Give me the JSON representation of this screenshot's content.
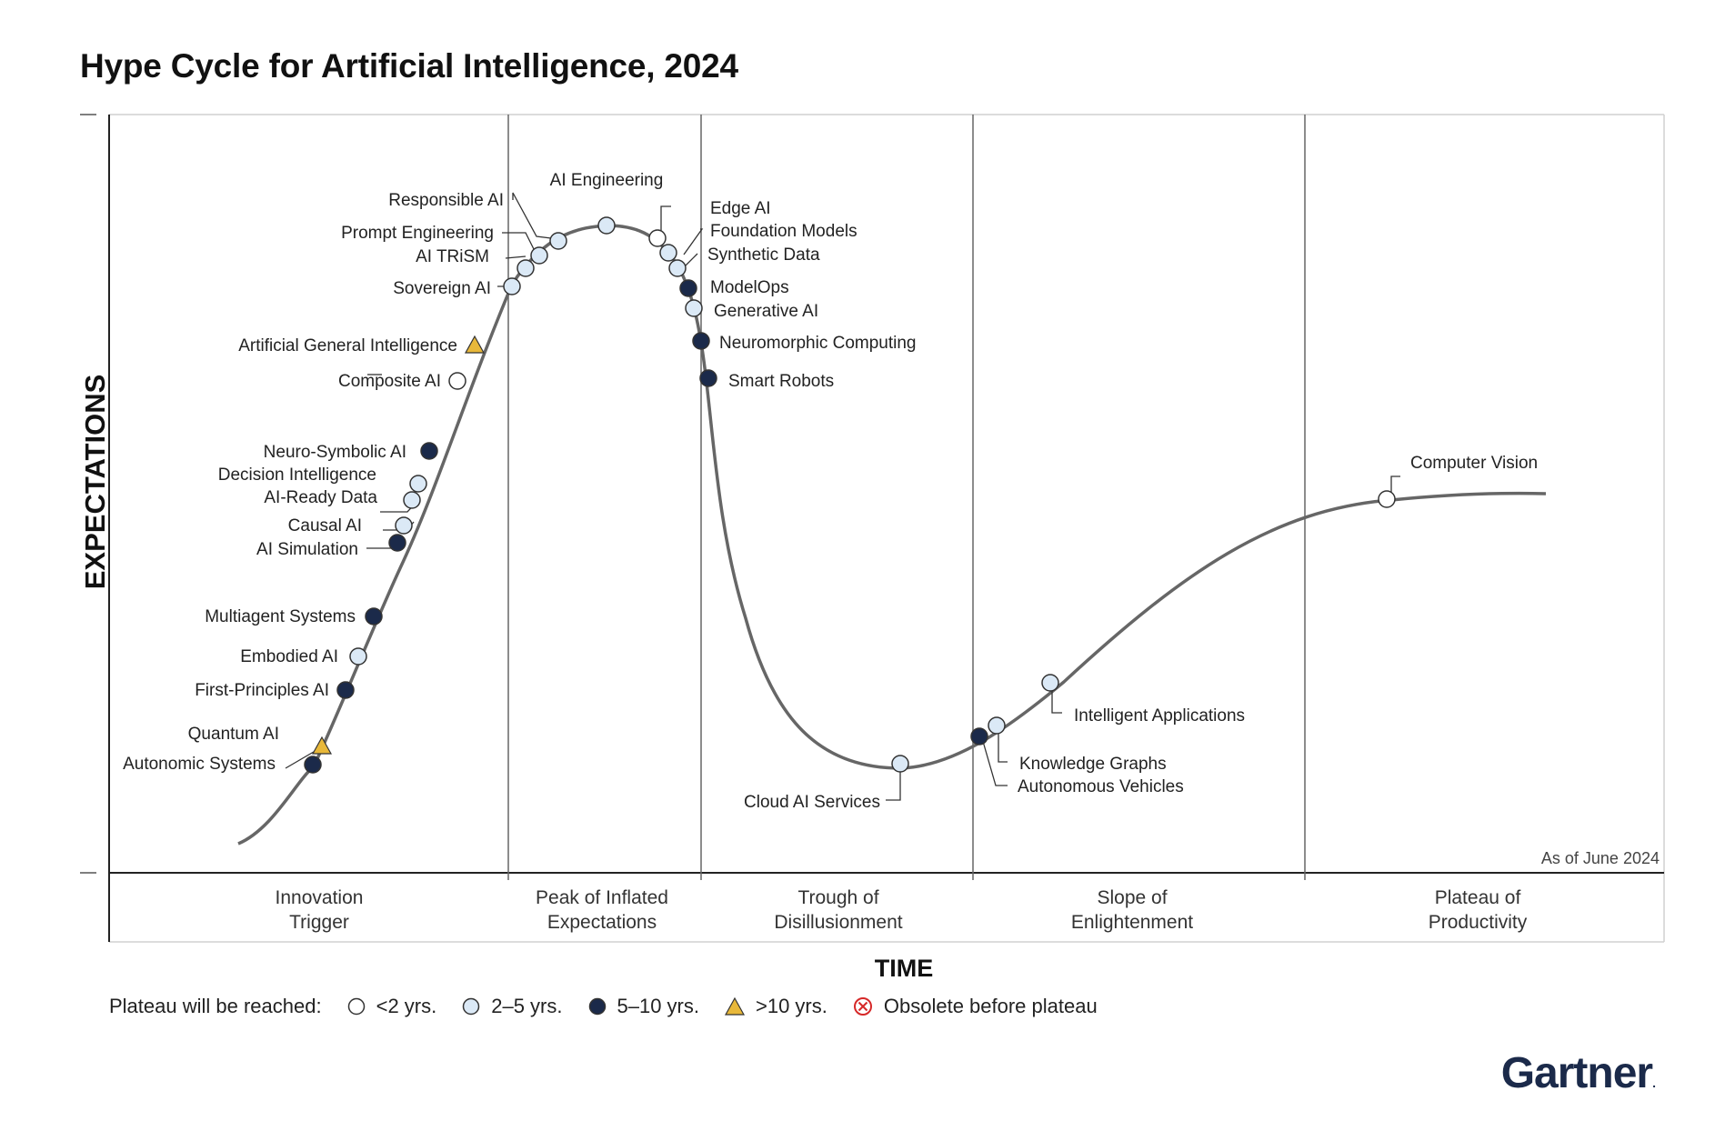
{
  "title": "Hype Cycle for Artificial Intelligence, 2024",
  "axis": {
    "y_label": "EXPECTATIONS",
    "x_label": "TIME"
  },
  "as_of": "As of June 2024",
  "phases": [
    {
      "line1": "Innovation",
      "line2": "Trigger"
    },
    {
      "line1": "Peak of Inflated",
      "line2": "Expectations"
    },
    {
      "line1": "Trough of",
      "line2": "Disillusionment"
    },
    {
      "line1": "Slope of",
      "line2": "Enlightenment"
    },
    {
      "line1": "Plateau of",
      "line2": "Productivity"
    }
  ],
  "colors": {
    "lt2": "#ffffff",
    "y2to5": "#dbe9f6",
    "y5to10": "#1b2a4a",
    "gt10": "#e8b83a",
    "obsolete": "#d62828",
    "curve": "#666666"
  },
  "technologies": [
    {
      "name": "AI Engineering",
      "class": "2-5"
    },
    {
      "name": "Responsible AI",
      "class": "2-5"
    },
    {
      "name": "Prompt Engineering",
      "class": "2-5"
    },
    {
      "name": "AI TRiSM",
      "class": "2-5"
    },
    {
      "name": "Sovereign AI",
      "class": "2-5"
    },
    {
      "name": "Artificial General Intelligence",
      "class": ">10"
    },
    {
      "name": "Composite AI",
      "class": "<2"
    },
    {
      "name": "Neuro-Symbolic AI",
      "class": "5-10"
    },
    {
      "name": "Decision Intelligence",
      "class": "2-5"
    },
    {
      "name": "AI-Ready Data",
      "class": "2-5"
    },
    {
      "name": "Causal AI",
      "class": "2-5"
    },
    {
      "name": "AI Simulation",
      "class": "5-10"
    },
    {
      "name": "Multiagent Systems",
      "class": "5-10"
    },
    {
      "name": "Embodied AI",
      "class": "2-5"
    },
    {
      "name": "First-Principles AI",
      "class": "5-10"
    },
    {
      "name": "Quantum AI",
      "class": ">10"
    },
    {
      "name": "Autonomic Systems",
      "class": "5-10"
    },
    {
      "name": "Edge AI",
      "class": "<2"
    },
    {
      "name": "Foundation Models",
      "class": "2-5"
    },
    {
      "name": "Synthetic Data",
      "class": "2-5"
    },
    {
      "name": "ModelOps",
      "class": "5-10"
    },
    {
      "name": "Generative AI",
      "class": "2-5"
    },
    {
      "name": "Neuromorphic Computing",
      "class": "5-10"
    },
    {
      "name": "Smart Robots",
      "class": "5-10"
    },
    {
      "name": "Cloud AI Services",
      "class": "2-5"
    },
    {
      "name": "Autonomous Vehicles",
      "class": "5-10"
    },
    {
      "name": "Knowledge Graphs",
      "class": "2-5"
    },
    {
      "name": "Intelligent Applications",
      "class": "2-5"
    },
    {
      "name": "Computer Vision",
      "class": "<2"
    }
  ],
  "legend": {
    "heading": "Plateau will be reached:",
    "items": [
      {
        "label": "<2 yrs.",
        "class": "<2"
      },
      {
        "label": "2–5 yrs.",
        "class": "2-5"
      },
      {
        "label": "5–10 yrs.",
        "class": "5-10"
      },
      {
        "label": ">10 yrs.",
        "class": ">10"
      },
      {
        "label": "Obsolete before plateau",
        "class": "obsolete"
      }
    ]
  },
  "brand": "Gartner"
}
